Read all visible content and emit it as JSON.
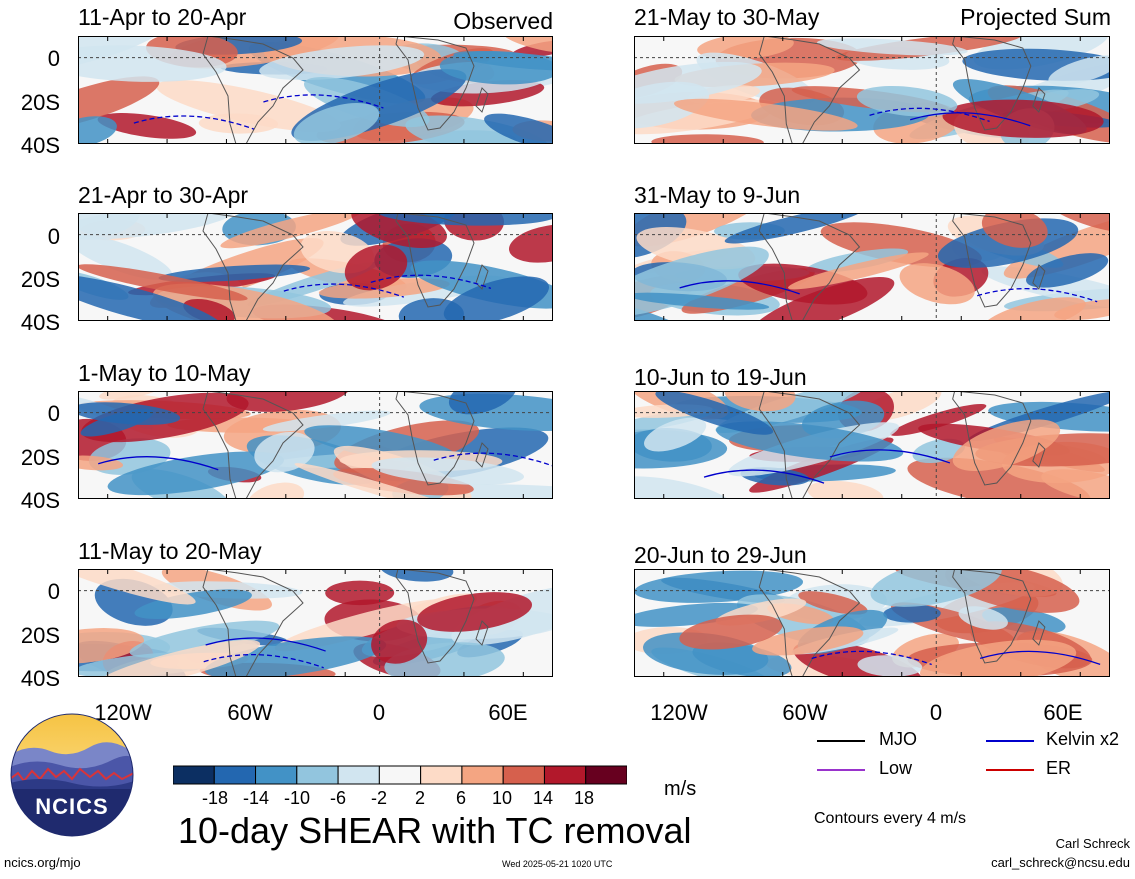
{
  "figure": {
    "title": "10-day SHEAR with TC removal",
    "left_column_label": "Observed",
    "right_column_label": "Projected Sum",
    "units": "m/s",
    "contour_note": "Contours every 4 m/s",
    "author": "Carl Schreck",
    "email": "carl_schreck@ncsu.edu",
    "site": "ncics.org/mjo",
    "timestamp": "Wed 2025-05-21 1020 UTC",
    "logo_text": "NCICS"
  },
  "axes": {
    "y_ticks": [
      "0",
      "20S",
      "40S"
    ],
    "x_ticks": [
      "120W",
      "60W",
      "0",
      "60E"
    ]
  },
  "panels": [
    {
      "title": "11-Apr to 20-Apr",
      "column": "observed",
      "seed": 1
    },
    {
      "title": "21-Apr to 30-Apr",
      "column": "observed",
      "seed": 2
    },
    {
      "title": "1-May to 10-May",
      "column": "observed",
      "seed": 3
    },
    {
      "title": "11-May to 20-May",
      "column": "observed",
      "seed": 4
    },
    {
      "title": "21-May to 30-May",
      "column": "projected",
      "seed": 5
    },
    {
      "title": "31-May to 9-Jun",
      "column": "projected",
      "seed": 6
    },
    {
      "title": "10-Jun to 19-Jun",
      "column": "projected",
      "seed": 7
    },
    {
      "title": "20-Jun to 29-Jun",
      "column": "projected",
      "seed": 8
    }
  ],
  "colorbar": {
    "labels": [
      "-18",
      "-14",
      "-10",
      "-6",
      "-2",
      "2",
      "6",
      "10",
      "14",
      "18"
    ],
    "colors": [
      "#0c2f62",
      "#2367b0",
      "#4292c6",
      "#92c5de",
      "#d1e5f0",
      "#f7f7f7",
      "#fddbc7",
      "#f4a582",
      "#d6604d",
      "#b2182b",
      "#67001f"
    ]
  },
  "legend": [
    {
      "label": "MJO",
      "color": "#000000"
    },
    {
      "label": "Kelvin x2",
      "color": "#0000cc"
    },
    {
      "label": "Low",
      "color": "#9933cc"
    },
    {
      "label": "ER",
      "color": "#cc0000"
    }
  ]
}
